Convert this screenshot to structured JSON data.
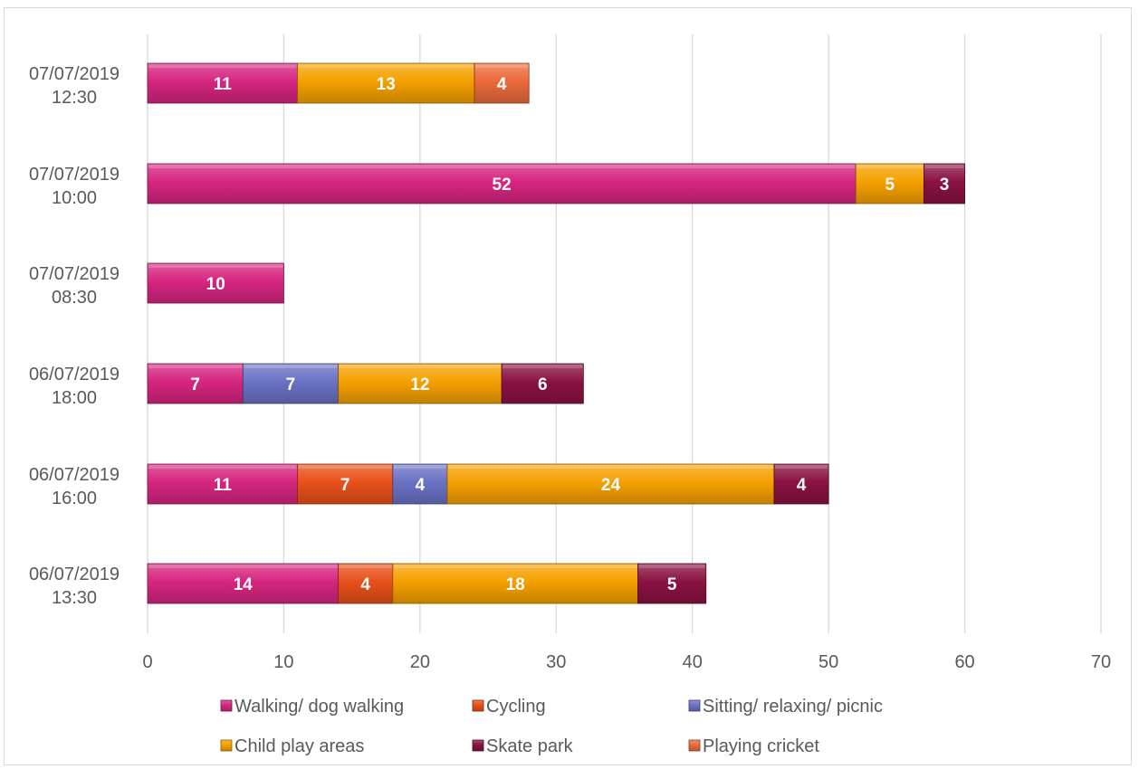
{
  "chart_data": {
    "type": "bar",
    "orientation": "horizontal",
    "stacked": true,
    "title": "",
    "xlabel": "",
    "ylabel": "",
    "xlim": [
      0,
      70
    ],
    "x_ticks": [
      0,
      10,
      20,
      30,
      40,
      50,
      60,
      70
    ],
    "grid": true,
    "legend_position": "bottom",
    "categories": [
      [
        "07/07/2019",
        "12:30"
      ],
      [
        "07/07/2019",
        "10:00"
      ],
      [
        "07/07/2019",
        "08:30"
      ],
      [
        "06/07/2019",
        "18:00"
      ],
      [
        "06/07/2019",
        "16:00"
      ],
      [
        "06/07/2019",
        "13:30"
      ]
    ],
    "series": [
      {
        "name": "Walking/ dog walking",
        "color": "#d6257f",
        "values": [
          11,
          52,
          10,
          7,
          11,
          14
        ]
      },
      {
        "name": "Cycling",
        "color": "#e8501a",
        "values": [
          null,
          null,
          null,
          null,
          7,
          4
        ]
      },
      {
        "name": "Sitting/ relaxing/ picnic",
        "color": "#6a72c4",
        "values": [
          null,
          null,
          null,
          7,
          4,
          null
        ]
      },
      {
        "name": "Child play areas",
        "color": "#f5a000",
        "values": [
          13,
          5,
          null,
          12,
          24,
          18
        ]
      },
      {
        "name": "Skate park",
        "color": "#8a1242",
        "values": [
          null,
          3,
          null,
          6,
          4,
          5
        ]
      },
      {
        "name": "Playing cricket",
        "color": "#ec6a3c",
        "values": [
          4,
          null,
          null,
          null,
          null,
          null
        ]
      }
    ]
  }
}
